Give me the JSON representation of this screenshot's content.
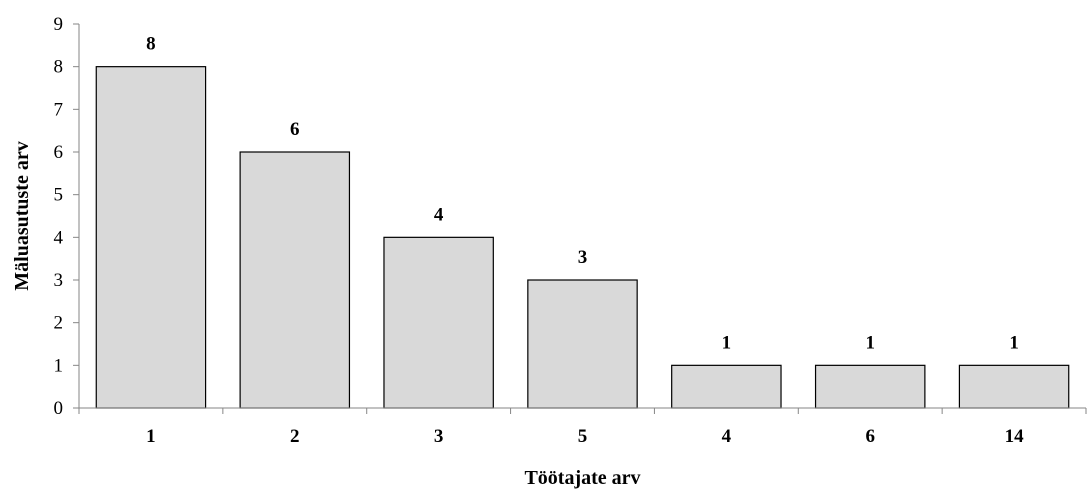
{
  "chart_data": {
    "type": "bar",
    "categories": [
      "1",
      "2",
      "3",
      "5",
      "4",
      "6",
      "14"
    ],
    "values": [
      8,
      6,
      4,
      3,
      1,
      1,
      1
    ],
    "data_labels": [
      "8",
      "6",
      "4",
      "3",
      "1",
      "1",
      "1"
    ],
    "xlabel": "Töötajate arv",
    "ylabel": "Mäluasutuste arv",
    "ylim": [
      0,
      9
    ],
    "yticks": [
      "0",
      "1",
      "2",
      "3",
      "4",
      "5",
      "6",
      "7",
      "8",
      "9"
    ],
    "grid": false,
    "legend": "none",
    "bar_color": "#d9d9d9",
    "bar_edge_color": "#000000"
  }
}
